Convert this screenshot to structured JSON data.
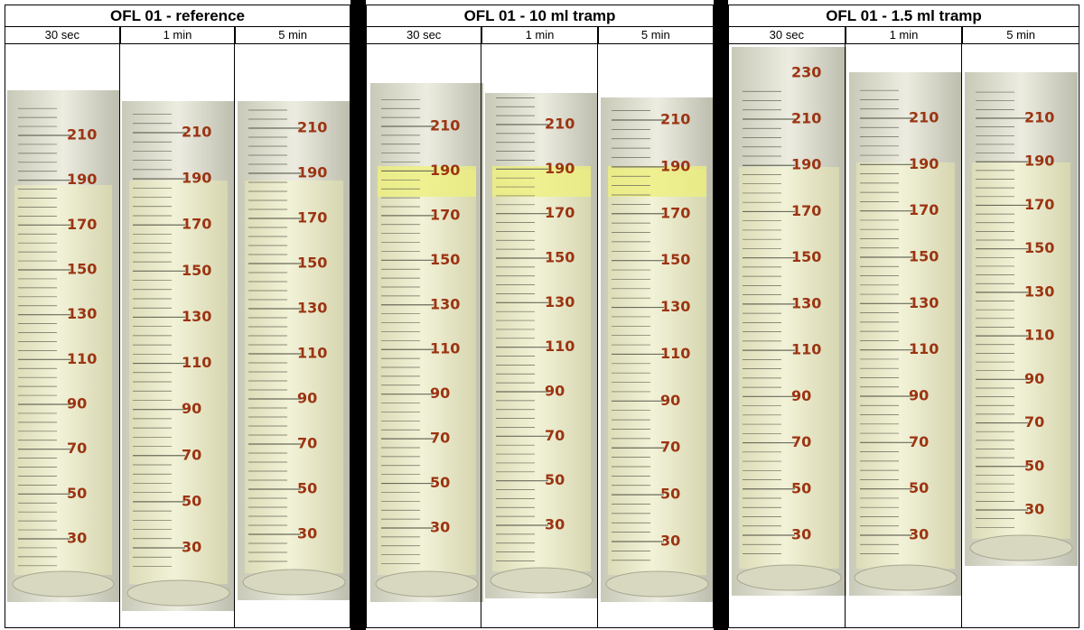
{
  "groups": [
    {
      "title": "OFL 01 - reference",
      "columns": [
        {
          "label": "30 sec"
        },
        {
          "label": "1 min"
        },
        {
          "label": "5 min"
        }
      ]
    },
    {
      "title": "OFL 01 - 10 ml tramp",
      "columns": [
        {
          "label": "30 sec"
        },
        {
          "label": "1 min"
        },
        {
          "label": "5 min"
        }
      ]
    },
    {
      "title": "OFL 01 - 1.5 ml tramp",
      "columns": [
        {
          "label": "30 sec",
          "extra_label": 230
        },
        {
          "label": "1 min"
        },
        {
          "label": "5 min"
        }
      ]
    }
  ],
  "scale_labels": [
    210,
    190,
    170,
    150,
    130,
    110,
    90,
    70,
    50,
    30
  ]
}
